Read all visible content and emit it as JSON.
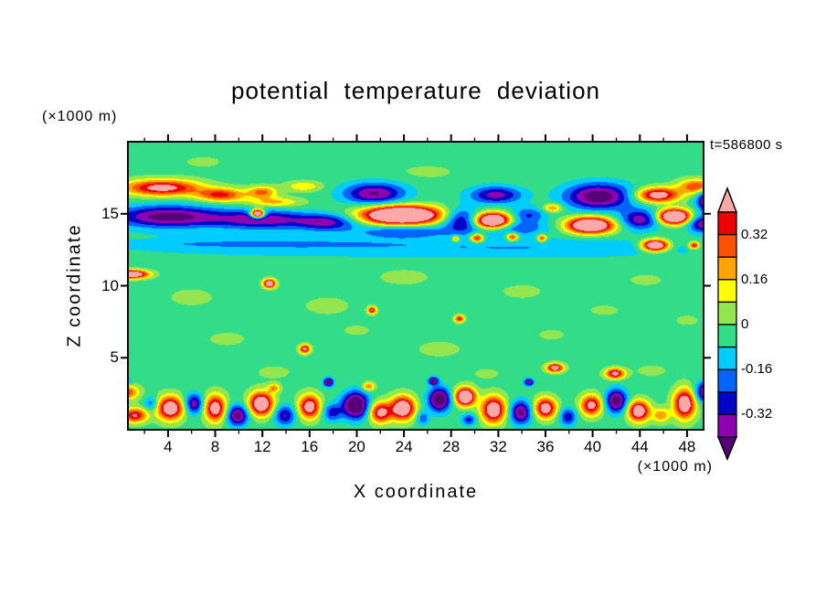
{
  "chart_data": {
    "type": "heatmap",
    "subtype": "filled-contour",
    "title": "potential temperature deviation",
    "xlabel": "X coordinate",
    "ylabel": "Z coordinate",
    "x_unit_label": "(×1000 m)",
    "z_unit_label": "(×1000 m)",
    "timestamp_label": "t=586800 s",
    "x_ticks": [
      4,
      8,
      12,
      16,
      20,
      24,
      28,
      32,
      36,
      40,
      44,
      48
    ],
    "x_minor_tick_step": 2,
    "z_ticks": [
      5,
      10,
      15
    ],
    "x_range": [
      0.6,
      49.4
    ],
    "z_range": [
      0,
      20
    ],
    "contour_interval": 0.08,
    "levels": [
      -0.4,
      -0.32,
      -0.24,
      -0.16,
      -0.08,
      0,
      0.08,
      0.16,
      0.24,
      0.32,
      0.4
    ],
    "colors": [
      "#570075",
      "#8f00b0",
      "#0005c8",
      "#0064ff",
      "#00ccff",
      "#33dd88",
      "#93e650",
      "#ffff00",
      "#ffa400",
      "#ff5200",
      "#ee0000",
      "#ffa8a8"
    ],
    "colorbar_labels": [
      "0.32",
      "0.16",
      "0",
      "-0.16",
      "-0.32"
    ],
    "colorbar_label_values": [
      0.32,
      0.16,
      0,
      -0.16,
      -0.32
    ],
    "frame_color": "#000000",
    "background_value": -0.03,
    "feature_format": [
      "x",
      "z",
      "rx",
      "rz",
      "amplitude"
    ],
    "features": [
      [
        3.5,
        16.8,
        3.2,
        0.55,
        0.5
      ],
      [
        8.5,
        16.3,
        2.0,
        0.45,
        0.38
      ],
      [
        12.0,
        16.5,
        1.2,
        0.4,
        0.3
      ],
      [
        15.5,
        16.9,
        1.5,
        0.35,
        0.18
      ],
      [
        13.0,
        15.8,
        2.2,
        0.35,
        0.22
      ],
      [
        21.5,
        16.4,
        2.6,
        0.75,
        -0.38
      ],
      [
        31.8,
        16.3,
        2.2,
        0.6,
        -0.33
      ],
      [
        40.5,
        16.2,
        2.8,
        0.9,
        -0.45
      ],
      [
        45.5,
        16.3,
        1.8,
        0.5,
        0.55
      ],
      [
        48.8,
        16.9,
        1.5,
        0.5,
        0.35
      ],
      [
        49.8,
        15.9,
        0.9,
        0.7,
        -0.5
      ],
      [
        4.0,
        14.8,
        4.5,
        0.75,
        -0.42
      ],
      [
        12.0,
        14.6,
        4.0,
        0.65,
        -0.35
      ],
      [
        17.5,
        14.4,
        2.5,
        0.55,
        -0.3
      ],
      [
        28.9,
        14.6,
        1.6,
        0.8,
        -0.33
      ],
      [
        34.5,
        14.9,
        1.5,
        0.55,
        -0.22
      ],
      [
        44.0,
        14.6,
        1.7,
        0.7,
        -0.33
      ],
      [
        49.3,
        14.3,
        1.2,
        0.6,
        -0.35
      ],
      [
        23.8,
        14.9,
        3.2,
        0.62,
        0.95
      ],
      [
        31.5,
        14.5,
        1.5,
        0.55,
        0.85
      ],
      [
        39.8,
        14.2,
        1.9,
        0.55,
        0.8
      ],
      [
        46.9,
        14.8,
        1.3,
        0.5,
        0.85
      ],
      [
        11.6,
        15.0,
        0.55,
        0.28,
        0.95
      ],
      [
        24.0,
        13.8,
        4.0,
        0.45,
        -0.2
      ],
      [
        33.0,
        14.0,
        3.0,
        0.5,
        -0.22
      ],
      [
        30.2,
        13.3,
        0.55,
        0.3,
        0.45
      ],
      [
        33.2,
        13.4,
        0.5,
        0.28,
        0.42
      ],
      [
        35.7,
        13.3,
        0.4,
        0.25,
        0.38
      ],
      [
        28.4,
        13.25,
        0.35,
        0.22,
        0.33
      ],
      [
        45.3,
        12.8,
        1.1,
        0.4,
        0.75
      ],
      [
        48.6,
        12.8,
        0.45,
        0.25,
        0.45
      ],
      [
        16.0,
        12.8,
        18.0,
        0.8,
        -0.11
      ],
      [
        38.0,
        12.6,
        14.0,
        0.65,
        -0.1
      ],
      [
        10.0,
        12.9,
        9.0,
        0.22,
        -0.07
      ],
      [
        36.6,
        15.4,
        0.8,
        0.3,
        0.28
      ],
      [
        0.8,
        10.8,
        1.4,
        0.28,
        0.75
      ],
      [
        12.6,
        10.15,
        0.5,
        0.3,
        0.65
      ],
      [
        21.3,
        8.3,
        0.35,
        0.25,
        0.45
      ],
      [
        28.7,
        7.7,
        0.4,
        0.25,
        0.4
      ],
      [
        15.6,
        5.6,
        0.45,
        0.3,
        0.5
      ],
      [
        36.8,
        4.3,
        0.7,
        0.3,
        0.55
      ],
      [
        41.9,
        3.9,
        0.8,
        0.35,
        0.5
      ],
      [
        6.0,
        9.2,
        2.2,
        0.7,
        0.055
      ],
      [
        17.5,
        8.6,
        2.5,
        0.8,
        0.05
      ],
      [
        24.0,
        10.6,
        2.8,
        0.7,
        0.05
      ],
      [
        34.0,
        9.6,
        2.2,
        0.6,
        0.05
      ],
      [
        41.0,
        8.3,
        1.8,
        0.5,
        0.045
      ],
      [
        9.0,
        6.3,
        2.0,
        0.6,
        0.05
      ],
      [
        27.0,
        5.6,
        2.4,
        0.7,
        0.05
      ],
      [
        36.5,
        6.6,
        1.6,
        0.5,
        0.045
      ],
      [
        45.0,
        4.1,
        1.6,
        0.5,
        0.05
      ],
      [
        13.0,
        4.0,
        1.8,
        0.55,
        0.05
      ],
      [
        31.0,
        3.9,
        1.5,
        0.5,
        0.045
      ],
      [
        20.0,
        6.9,
        1.6,
        0.5,
        0.045
      ],
      [
        44.5,
        10.4,
        2.0,
        0.55,
        0.045
      ],
      [
        48.0,
        7.6,
        1.4,
        0.5,
        0.045
      ],
      [
        26.0,
        17.9,
        3.0,
        0.6,
        0.045
      ],
      [
        7.0,
        18.6,
        2.5,
        0.6,
        0.04
      ],
      [
        0.5,
        2.6,
        1.0,
        0.5,
        0.35
      ],
      [
        1.2,
        1.0,
        1.0,
        0.5,
        0.45
      ],
      [
        2.6,
        1.8,
        0.6,
        0.5,
        -0.2
      ],
      [
        4.2,
        1.5,
        1.1,
        0.8,
        0.6
      ],
      [
        6.2,
        1.8,
        0.8,
        0.7,
        -0.35
      ],
      [
        8.0,
        1.5,
        0.9,
        0.9,
        0.55
      ],
      [
        9.9,
        1.0,
        0.9,
        0.7,
        -0.42
      ],
      [
        11.9,
        1.8,
        1.0,
        0.8,
        0.65
      ],
      [
        13.9,
        1.0,
        0.9,
        0.7,
        -0.3
      ],
      [
        16.0,
        1.6,
        0.9,
        0.8,
        0.55
      ],
      [
        17.9,
        1.2,
        0.8,
        0.6,
        -0.25
      ],
      [
        19.9,
        1.7,
        1.1,
        0.9,
        -0.55
      ],
      [
        22.0,
        1.2,
        0.9,
        0.7,
        0.5
      ],
      [
        23.9,
        1.5,
        1.0,
        0.8,
        0.65
      ],
      [
        25.6,
        0.8,
        0.5,
        0.5,
        -0.2
      ],
      [
        27.0,
        2.1,
        0.9,
        0.8,
        -0.5
      ],
      [
        29.2,
        2.3,
        0.8,
        0.6,
        0.75
      ],
      [
        29.5,
        0.7,
        0.6,
        0.4,
        -0.25
      ],
      [
        31.6,
        1.4,
        1.0,
        0.9,
        0.6
      ],
      [
        33.9,
        1.2,
        0.9,
        0.8,
        -0.4
      ],
      [
        36.0,
        1.5,
        0.9,
        0.7,
        0.55
      ],
      [
        37.9,
        0.9,
        0.7,
        0.6,
        -0.28
      ],
      [
        39.9,
        1.7,
        0.9,
        0.7,
        0.5
      ],
      [
        42.0,
        2.0,
        0.9,
        0.8,
        -0.45
      ],
      [
        43.9,
        1.3,
        0.9,
        0.7,
        0.6
      ],
      [
        45.8,
        1.0,
        0.7,
        0.5,
        0.25
      ],
      [
        47.8,
        1.8,
        0.9,
        1.0,
        0.6
      ],
      [
        49.5,
        2.6,
        0.8,
        0.7,
        -0.4
      ],
      [
        17.6,
        3.3,
        0.4,
        0.3,
        -0.45
      ],
      [
        26.5,
        3.4,
        0.4,
        0.25,
        -0.45
      ],
      [
        34.6,
        3.3,
        0.4,
        0.25,
        -0.4
      ],
      [
        21.0,
        3.0,
        0.5,
        0.3,
        0.3
      ],
      [
        13.0,
        2.9,
        0.5,
        0.3,
        0.25
      ],
      [
        0.4,
        3.4,
        0.6,
        0.3,
        -0.15
      ]
    ]
  }
}
